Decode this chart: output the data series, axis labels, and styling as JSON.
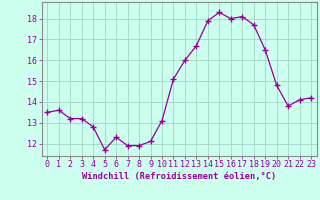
{
  "x": [
    0,
    1,
    2,
    3,
    4,
    5,
    6,
    7,
    8,
    9,
    10,
    11,
    12,
    13,
    14,
    15,
    16,
    17,
    18,
    19,
    20,
    21,
    22,
    23
  ],
  "y": [
    13.5,
    13.6,
    13.2,
    13.2,
    12.8,
    11.7,
    12.3,
    11.9,
    11.9,
    12.1,
    13.1,
    15.1,
    16.0,
    16.7,
    17.9,
    18.3,
    18.0,
    18.1,
    17.7,
    16.5,
    14.8,
    13.8,
    14.1,
    14.2
  ],
  "line_color": "#990099",
  "marker": "+",
  "markersize": 4,
  "linewidth": 0.9,
  "bg_color": "#ccffee",
  "grid_color": "#99ccbb",
  "ylabel_values": [
    12,
    13,
    14,
    15,
    16,
    17,
    18
  ],
  "ylim": [
    11.4,
    18.8
  ],
  "xlim": [
    -0.5,
    23.5
  ],
  "xlabel": "Windchill (Refroidissement éolien,°C)",
  "xlabel_fontsize": 6.2,
  "tick_fontsize": 6.0,
  "spine_color": "#888888"
}
